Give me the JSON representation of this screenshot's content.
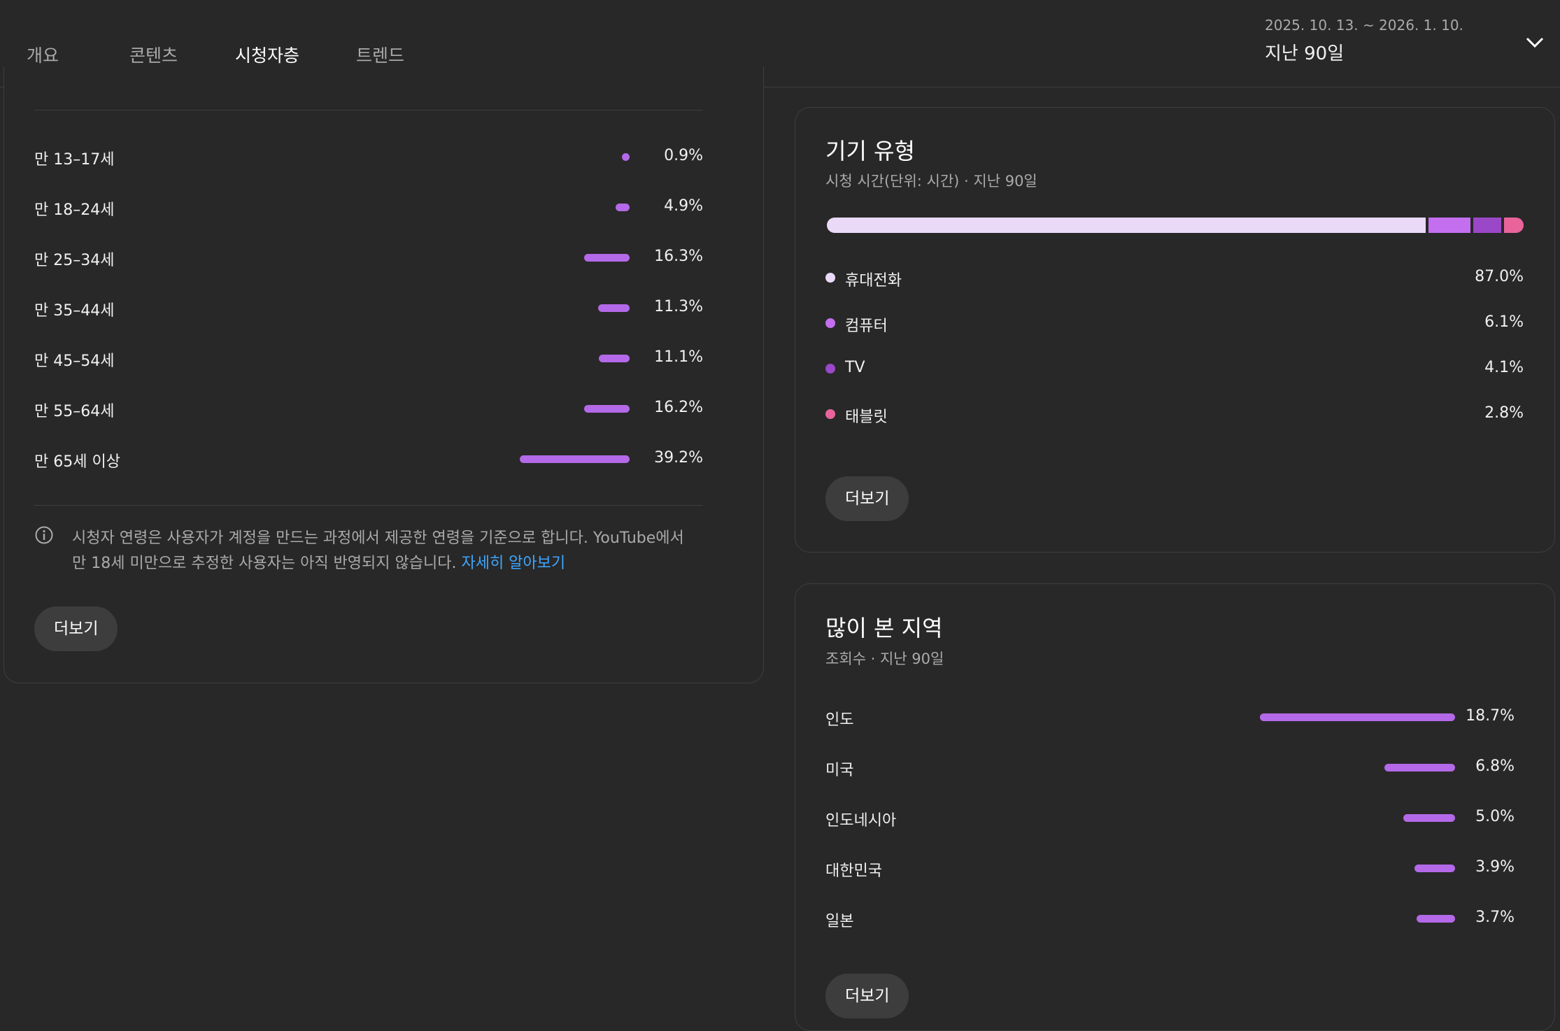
{
  "tabs": [
    {
      "label": "개요"
    },
    {
      "label": "콘텐츠"
    },
    {
      "label": "시청자층"
    },
    {
      "label": "트렌드"
    }
  ],
  "date_selector": {
    "range": "2025. 10. 13. ~ 2026. 1. 10.",
    "label": "지난 90일",
    "icon": "chevron-down-icon"
  },
  "age": {
    "rows": [
      {
        "label": "만 13–17세",
        "value": "0.9%",
        "fraction": 0.009
      },
      {
        "label": "만 18–24세",
        "value": "4.9%",
        "fraction": 0.049
      },
      {
        "label": "만 25–34세",
        "value": "16.3%",
        "fraction": 0.163
      },
      {
        "label": "만 35–44세",
        "value": "11.3%",
        "fraction": 0.113
      },
      {
        "label": "만 45–54세",
        "value": "11.1%",
        "fraction": 0.111
      },
      {
        "label": "만 55–64세",
        "value": "16.2%",
        "fraction": 0.162
      },
      {
        "label": "만 65세 이상",
        "value": "39.2%",
        "fraction": 0.392
      }
    ],
    "note": "시청자 연령은 사용자가 계정을 만드는 과정에서 제공한 연령을 기준으로 합니다. YouTube에서 만 18세 미만으로 추정한 사용자는 아직 반영되지 않습니다.",
    "note_link": "자세히 알아보기",
    "more_label": "더보기"
  },
  "device": {
    "title": "기기 유형",
    "subtitle": "시청 시간(단위: 시간) · 지난 90일",
    "items": [
      {
        "label": "휴대전화",
        "value": "87.0%",
        "fraction": 0.87,
        "color": "#ead9f7"
      },
      {
        "label": "컴퓨터",
        "value": "6.1%",
        "fraction": 0.061,
        "color": "#c46ff0"
      },
      {
        "label": "TV",
        "value": "4.1%",
        "fraction": 0.041,
        "color": "#9a48c8"
      },
      {
        "label": "태블릿",
        "value": "2.8%",
        "fraction": 0.028,
        "color": "#e9649b"
      }
    ],
    "more_label": "더보기"
  },
  "region": {
    "title": "많이 본 지역",
    "subtitle": "조회수 · 지난 90일",
    "rows": [
      {
        "label": "인도",
        "value": "18.7%",
        "fraction": 0.187
      },
      {
        "label": "미국",
        "value": "6.8%",
        "fraction": 0.068
      },
      {
        "label": "인도네시아",
        "value": "5.0%",
        "fraction": 0.05
      },
      {
        "label": "대한민국",
        "value": "3.9%",
        "fraction": 0.039
      },
      {
        "label": "일본",
        "value": "3.7%",
        "fraction": 0.037
      }
    ],
    "more_label": "더보기"
  },
  "colors": {
    "accent_bar": "#b469e8",
    "link": "#3ea6ff",
    "background": "#282828"
  }
}
